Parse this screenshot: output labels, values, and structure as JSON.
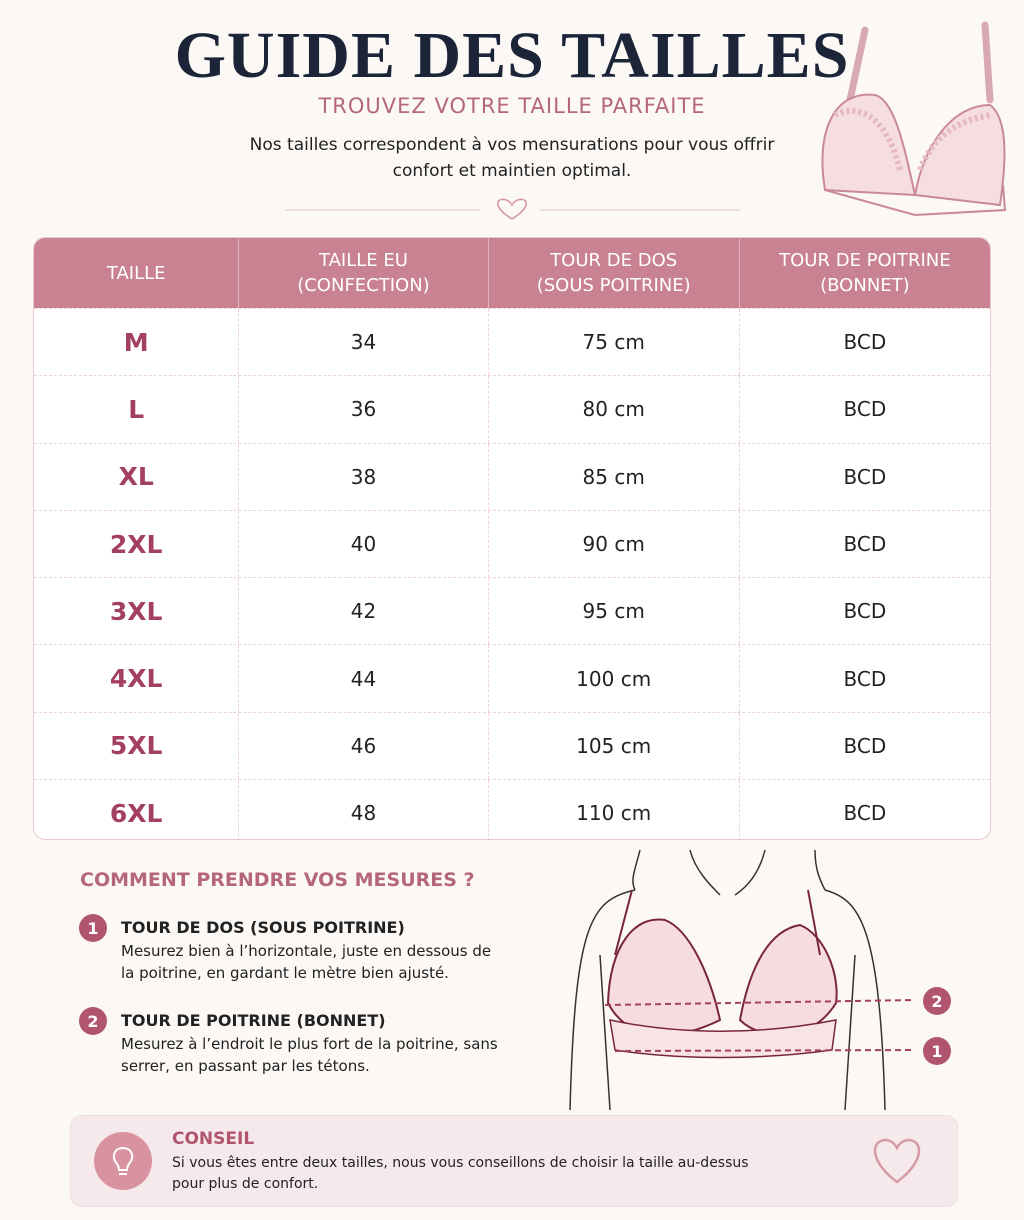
{
  "header": {
    "title": "GUIDE DES TAILLES",
    "subtitle": "TROUVEZ VOTRE TAILLE PARFAITE",
    "description": "Nos tailles correspondent à vos mensurations pour vous offrir confort et maintien optimal."
  },
  "table": {
    "columns": [
      [
        "TAILLE"
      ],
      [
        "TAILLE EU",
        "(CONFECTION)"
      ],
      [
        "TOUR DE DOS",
        "(SOUS POITRINE)"
      ],
      [
        "TOUR DE POITRINE",
        "(BONNET)"
      ]
    ],
    "rows": [
      [
        "M",
        "34",
        "75 cm",
        "BCD"
      ],
      [
        "L",
        "36",
        "80 cm",
        "BCD"
      ],
      [
        "XL",
        "38",
        "85 cm",
        "BCD"
      ],
      [
        "2XL",
        "40",
        "90 cm",
        "BCD"
      ],
      [
        "3XL",
        "42",
        "95 cm",
        "BCD"
      ],
      [
        "4XL",
        "44",
        "100 cm",
        "BCD"
      ],
      [
        "5XL",
        "46",
        "105 cm",
        "BCD"
      ],
      [
        "6XL",
        "48",
        "110 cm",
        "BCD"
      ]
    ]
  },
  "instructions": {
    "title": "COMMENT PRENDRE VOS MESURES ?",
    "steps": [
      {
        "number": "1",
        "title": "TOUR DE DOS (SOUS POITRINE)",
        "text": "Mesurez bien à l’horizontale, juste en dessous de la poitrine, en gardant le mètre bien ajusté."
      },
      {
        "number": "2",
        "title": "TOUR DE POITRINE (BONNET)",
        "text": "Mesurez à l’endroit le plus fort de la poitrine, sans serrer, en passant par les tétons."
      }
    ]
  },
  "diagram_markers": [
    "2",
    "1"
  ],
  "tip": {
    "title": "CONSEIL",
    "text": "Si vous êtes entre deux tailles, nous vous conseillons de choisir la taille au-dessus pour plus de confort."
  }
}
